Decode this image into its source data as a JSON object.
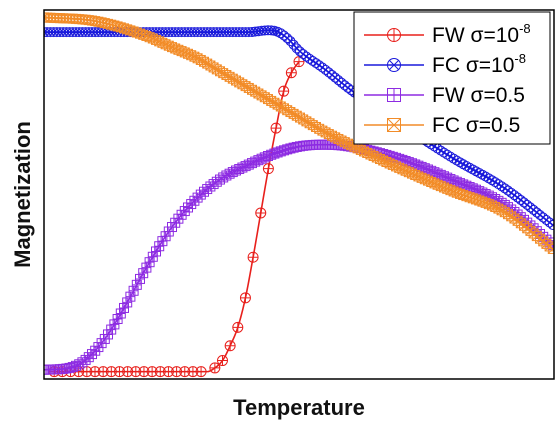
{
  "chart_data": {
    "type": "line",
    "title": "",
    "xlabel": "Temperature",
    "ylabel": "Magnetization",
    "xlim": [
      0,
      100
    ],
    "ylim": [
      0,
      100
    ],
    "ticks": "none",
    "grid": false,
    "legend_position": "top-right",
    "series": [
      {
        "name": "FW σ=10⁻⁸",
        "label_base": "FW σ=10",
        "label_exp": "-8",
        "color": "#e8201c",
        "marker": "circle-plus",
        "x": [
          2,
          8,
          14,
          20,
          26,
          32,
          33.5,
          35,
          36.5,
          38,
          39.5,
          41,
          42.5,
          44,
          45.5,
          47,
          48.5,
          50
        ],
        "y": [
          2,
          2,
          2,
          2,
          2,
          2,
          3,
          5,
          9,
          14,
          22,
          33,
          45,
          57,
          68,
          78,
          83,
          86
        ]
      },
      {
        "name": "FC σ=10⁻⁸",
        "label_base": "FC σ=10",
        "label_exp": "-8",
        "color": "#1a1adb",
        "marker": "circle-x",
        "x": [
          0,
          10,
          20,
          30,
          40,
          44,
          46,
          48,
          50,
          55,
          60,
          70,
          80,
          90,
          100
        ],
        "y": [
          94,
          94,
          94,
          94,
          94,
          94.5,
          94,
          92,
          89,
          84,
          78.5,
          69,
          60,
          52,
          41.5
        ]
      },
      {
        "name": "FW σ=0.5",
        "label_base": "FW σ=0.5",
        "label_exp": "",
        "color": "#8d2be2",
        "marker": "square-plus",
        "x": [
          0,
          5,
          8,
          12,
          16,
          20,
          25,
          30,
          35,
          40,
          45,
          50,
          55,
          60,
          70,
          80,
          90,
          100
        ],
        "y": [
          2.5,
          3,
          5,
          11,
          20,
          30,
          41,
          49,
          54.5,
          58,
          61,
          63,
          63.5,
          63,
          59.5,
          54,
          47.5,
          36
        ]
      },
      {
        "name": "FC σ=0.5",
        "label_base": "FC σ=0.5",
        "label_exp": "",
        "color": "#f28c28",
        "marker": "square-x",
        "x": [
          0,
          10,
          20,
          25,
          30,
          35,
          40,
          45,
          50,
          55,
          60,
          70,
          80,
          90,
          100
        ],
        "y": [
          98,
          97,
          93,
          90,
          87,
          83,
          79,
          75,
          71,
          67,
          63.5,
          57,
          51,
          45.5,
          35
        ]
      }
    ]
  }
}
